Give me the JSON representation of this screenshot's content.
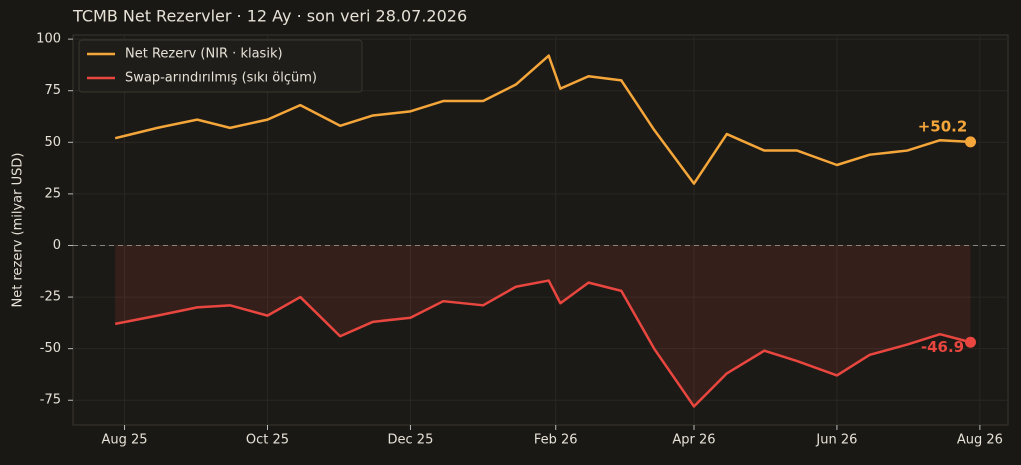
{
  "chart_data": {
    "type": "line",
    "title": "TCMB Net Rezervler · 12 Ay · son veri 28.07.2026",
    "y_label": "Net rezerv (milyar USD)",
    "x": [
      "2025-07-28",
      "2025-08-15",
      "2025-09-01",
      "2025-09-15",
      "2025-10-01",
      "2025-10-15",
      "2025-11-01",
      "2025-11-15",
      "2025-12-01",
      "2025-12-15",
      "2026-01-01",
      "2026-01-15",
      "2026-01-29",
      "2026-02-03",
      "2026-02-15",
      "2026-03-01",
      "2026-03-15",
      "2026-04-01",
      "2026-04-15",
      "2026-05-01",
      "2026-05-15",
      "2026-06-01",
      "2026-06-15",
      "2026-07-01",
      "2026-07-15",
      "2026-07-28"
    ],
    "series": [
      {
        "name": "Net Rezerv (NIR · klasik)",
        "color": "#f5a63a",
        "fill": false,
        "values": [
          52,
          57,
          61,
          57,
          61,
          68,
          58,
          63,
          65,
          70,
          70,
          78,
          92,
          76,
          82,
          80,
          56,
          30,
          54,
          46,
          46,
          39,
          44,
          46,
          51,
          50.2
        ],
        "value_labels": [
          null,
          null,
          null,
          null,
          null,
          null,
          null,
          null,
          null,
          null,
          null,
          null,
          null,
          null,
          null,
          null,
          null,
          null,
          null,
          null,
          null,
          null,
          null,
          null,
          null,
          "+50.2"
        ]
      },
      {
        "name": "Swap-arındırılmış (sıkı ölçüm)",
        "color": "#e8463f",
        "fill": true,
        "values": [
          -38,
          -34,
          -30,
          -29,
          -34,
          -25,
          -44,
          -37,
          -35,
          -27,
          -29,
          -20,
          -17,
          -28,
          -18,
          -22,
          -50,
          -78,
          -62,
          -51,
          -56,
          -63,
          -53,
          -48,
          -43,
          -46.9
        ],
        "value_labels": [
          null,
          null,
          null,
          null,
          null,
          null,
          null,
          null,
          null,
          null,
          null,
          null,
          null,
          null,
          null,
          null,
          null,
          null,
          null,
          null,
          null,
          null,
          null,
          null,
          null,
          "-46.9"
        ]
      }
    ],
    "xlim": [
      "2025-07-10",
      "2026-08-13"
    ],
    "xticks": [
      {
        "value": "2025-08-01",
        "label": "Aug 25"
      },
      {
        "value": "2025-10-01",
        "label": "Oct 25"
      },
      {
        "value": "2025-12-01",
        "label": "Dec 25"
      },
      {
        "value": "2026-02-01",
        "label": "Feb 26"
      },
      {
        "value": "2026-04-01",
        "label": "Apr 26"
      },
      {
        "value": "2026-06-01",
        "label": "Jun 26"
      },
      {
        "value": "2026-08-01",
        "label": "Aug 26"
      }
    ],
    "ylim": [
      -87,
      102
    ],
    "yticks": [
      -75,
      -50,
      -25,
      0,
      25,
      50,
      75,
      100
    ],
    "grid": true,
    "zero_line": true,
    "legend": "upper left"
  }
}
